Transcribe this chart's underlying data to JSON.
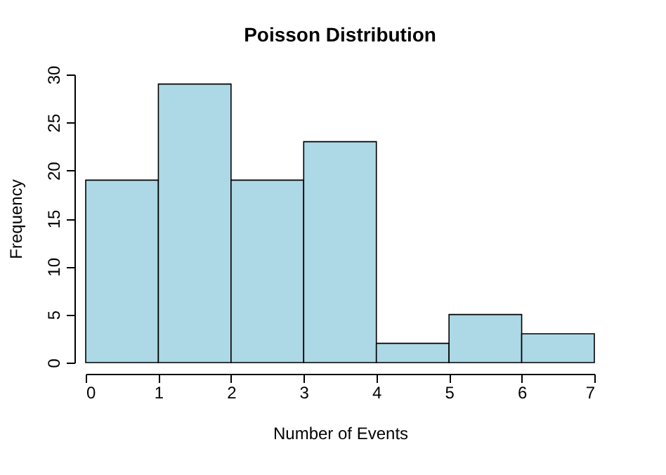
{
  "chart_data": {
    "type": "histogram",
    "title": "Poisson Distribution",
    "xlabel": "Number of Events",
    "ylabel": "Frequency",
    "bins": [
      0,
      1,
      2,
      3,
      4,
      5,
      6,
      7
    ],
    "values": [
      19,
      29,
      19,
      23,
      2,
      5,
      3
    ],
    "color": "#add8e6",
    "xlim": [
      0,
      7
    ],
    "xticks": [
      0,
      1,
      2,
      3,
      4,
      5,
      6,
      7
    ],
    "ylim": [
      0,
      30
    ],
    "yticks": [
      0,
      5,
      10,
      15,
      20,
      25,
      30
    ],
    "grid": false
  }
}
